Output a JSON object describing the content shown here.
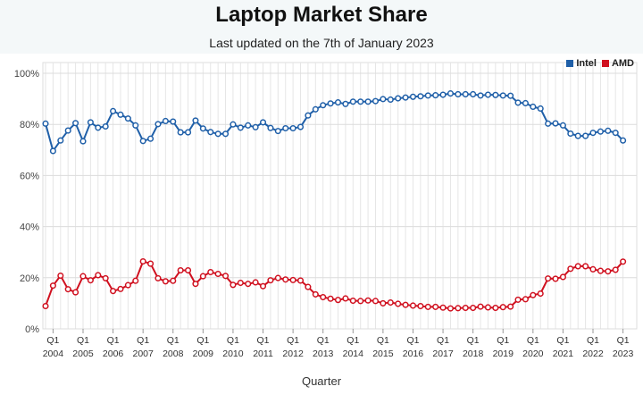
{
  "header": {
    "title": "Laptop Market Share",
    "subtitle": "Last updated on the 7th of January 2023"
  },
  "chart_data": {
    "type": "line",
    "title": "Laptop Market Share",
    "subtitle": "Last updated on the 7th of January 2023",
    "xlabel": "Quarter",
    "ylabel": "",
    "ylim": [
      0,
      100
    ],
    "y_ticks": [
      "0%",
      "20%",
      "40%",
      "60%",
      "80%",
      "100%"
    ],
    "grid": true,
    "legend_position": "top-right",
    "x_tick_labels": [
      {
        "quarter": "Q1",
        "year": "2004"
      },
      {
        "quarter": "Q1",
        "year": "2005"
      },
      {
        "quarter": "Q1",
        "year": "2006"
      },
      {
        "quarter": "Q1",
        "year": "2007"
      },
      {
        "quarter": "Q1",
        "year": "2008"
      },
      {
        "quarter": "Q1",
        "year": "2009"
      },
      {
        "quarter": "Q1",
        "year": "2010"
      },
      {
        "quarter": "Q1",
        "year": "2011"
      },
      {
        "quarter": "Q1",
        "year": "2012"
      },
      {
        "quarter": "Q1",
        "year": "2013"
      },
      {
        "quarter": "Q1",
        "year": "2014"
      },
      {
        "quarter": "Q1",
        "year": "2015"
      },
      {
        "quarter": "Q1",
        "year": "2016"
      },
      {
        "quarter": "Q1",
        "year": "2017"
      },
      {
        "quarter": "Q1",
        "year": "2018"
      },
      {
        "quarter": "Q1",
        "year": "2019"
      },
      {
        "quarter": "Q1",
        "year": "2020"
      },
      {
        "quarter": "Q1",
        "year": "2021"
      },
      {
        "quarter": "Q1",
        "year": "2022"
      },
      {
        "quarter": "Q1",
        "year": "2023"
      }
    ],
    "series": [
      {
        "name": "Intel",
        "color": "#1f5fa8",
        "values": [
          80.3,
          69.6,
          73.7,
          77.6,
          80.5,
          73.4,
          80.8,
          78.7,
          79.2,
          85.2,
          83.8,
          82.3,
          79.6,
          73.5,
          74.4,
          80.1,
          81.3,
          81.1,
          76.9,
          76.9,
          81.5,
          78.4,
          77.0,
          76.3,
          76.3,
          80.0,
          78.7,
          79.6,
          78.9,
          80.8,
          78.6,
          77.4,
          78.5,
          78.5,
          79.0,
          83.5,
          85.9,
          87.5,
          88.2,
          88.6,
          88.0,
          88.9,
          88.9,
          88.9,
          89.1,
          89.9,
          89.7,
          90.2,
          90.5,
          90.8,
          91.0,
          91.3,
          91.4,
          91.6,
          92.1,
          91.8,
          91.8,
          91.8,
          91.3,
          91.6,
          91.5,
          91.3,
          91.2,
          88.5,
          88.3,
          86.9,
          86.2,
          80.3,
          80.4,
          79.6,
          76.4,
          75.5,
          75.5,
          76.7,
          77.2,
          77.5,
          76.7,
          73.7
        ]
      },
      {
        "name": "AMD",
        "color": "#d0101f",
        "values": [
          8.9,
          16.9,
          20.8,
          15.5,
          14.3,
          20.6,
          19.0,
          21.0,
          19.8,
          14.8,
          15.6,
          17.1,
          18.8,
          26.4,
          25.5,
          19.8,
          18.6,
          18.8,
          22.9,
          22.9,
          17.6,
          20.6,
          22.2,
          21.5,
          20.7,
          17.2,
          18.0,
          17.6,
          18.2,
          16.7,
          19.0,
          19.9,
          19.3,
          19.1,
          18.9,
          16.4,
          13.5,
          12.4,
          11.8,
          11.3,
          11.9,
          11.0,
          10.9,
          11.1,
          10.9,
          10.0,
          10.3,
          9.8,
          9.4,
          9.1,
          8.9,
          8.6,
          8.6,
          8.3,
          8.0,
          8.1,
          8.2,
          8.2,
          8.7,
          8.4,
          8.2,
          8.5,
          8.7,
          11.4,
          11.6,
          13.2,
          13.8,
          19.7,
          19.6,
          20.3,
          23.5,
          24.5,
          24.5,
          23.3,
          22.7,
          22.5,
          23.1,
          26.3
        ]
      }
    ]
  }
}
